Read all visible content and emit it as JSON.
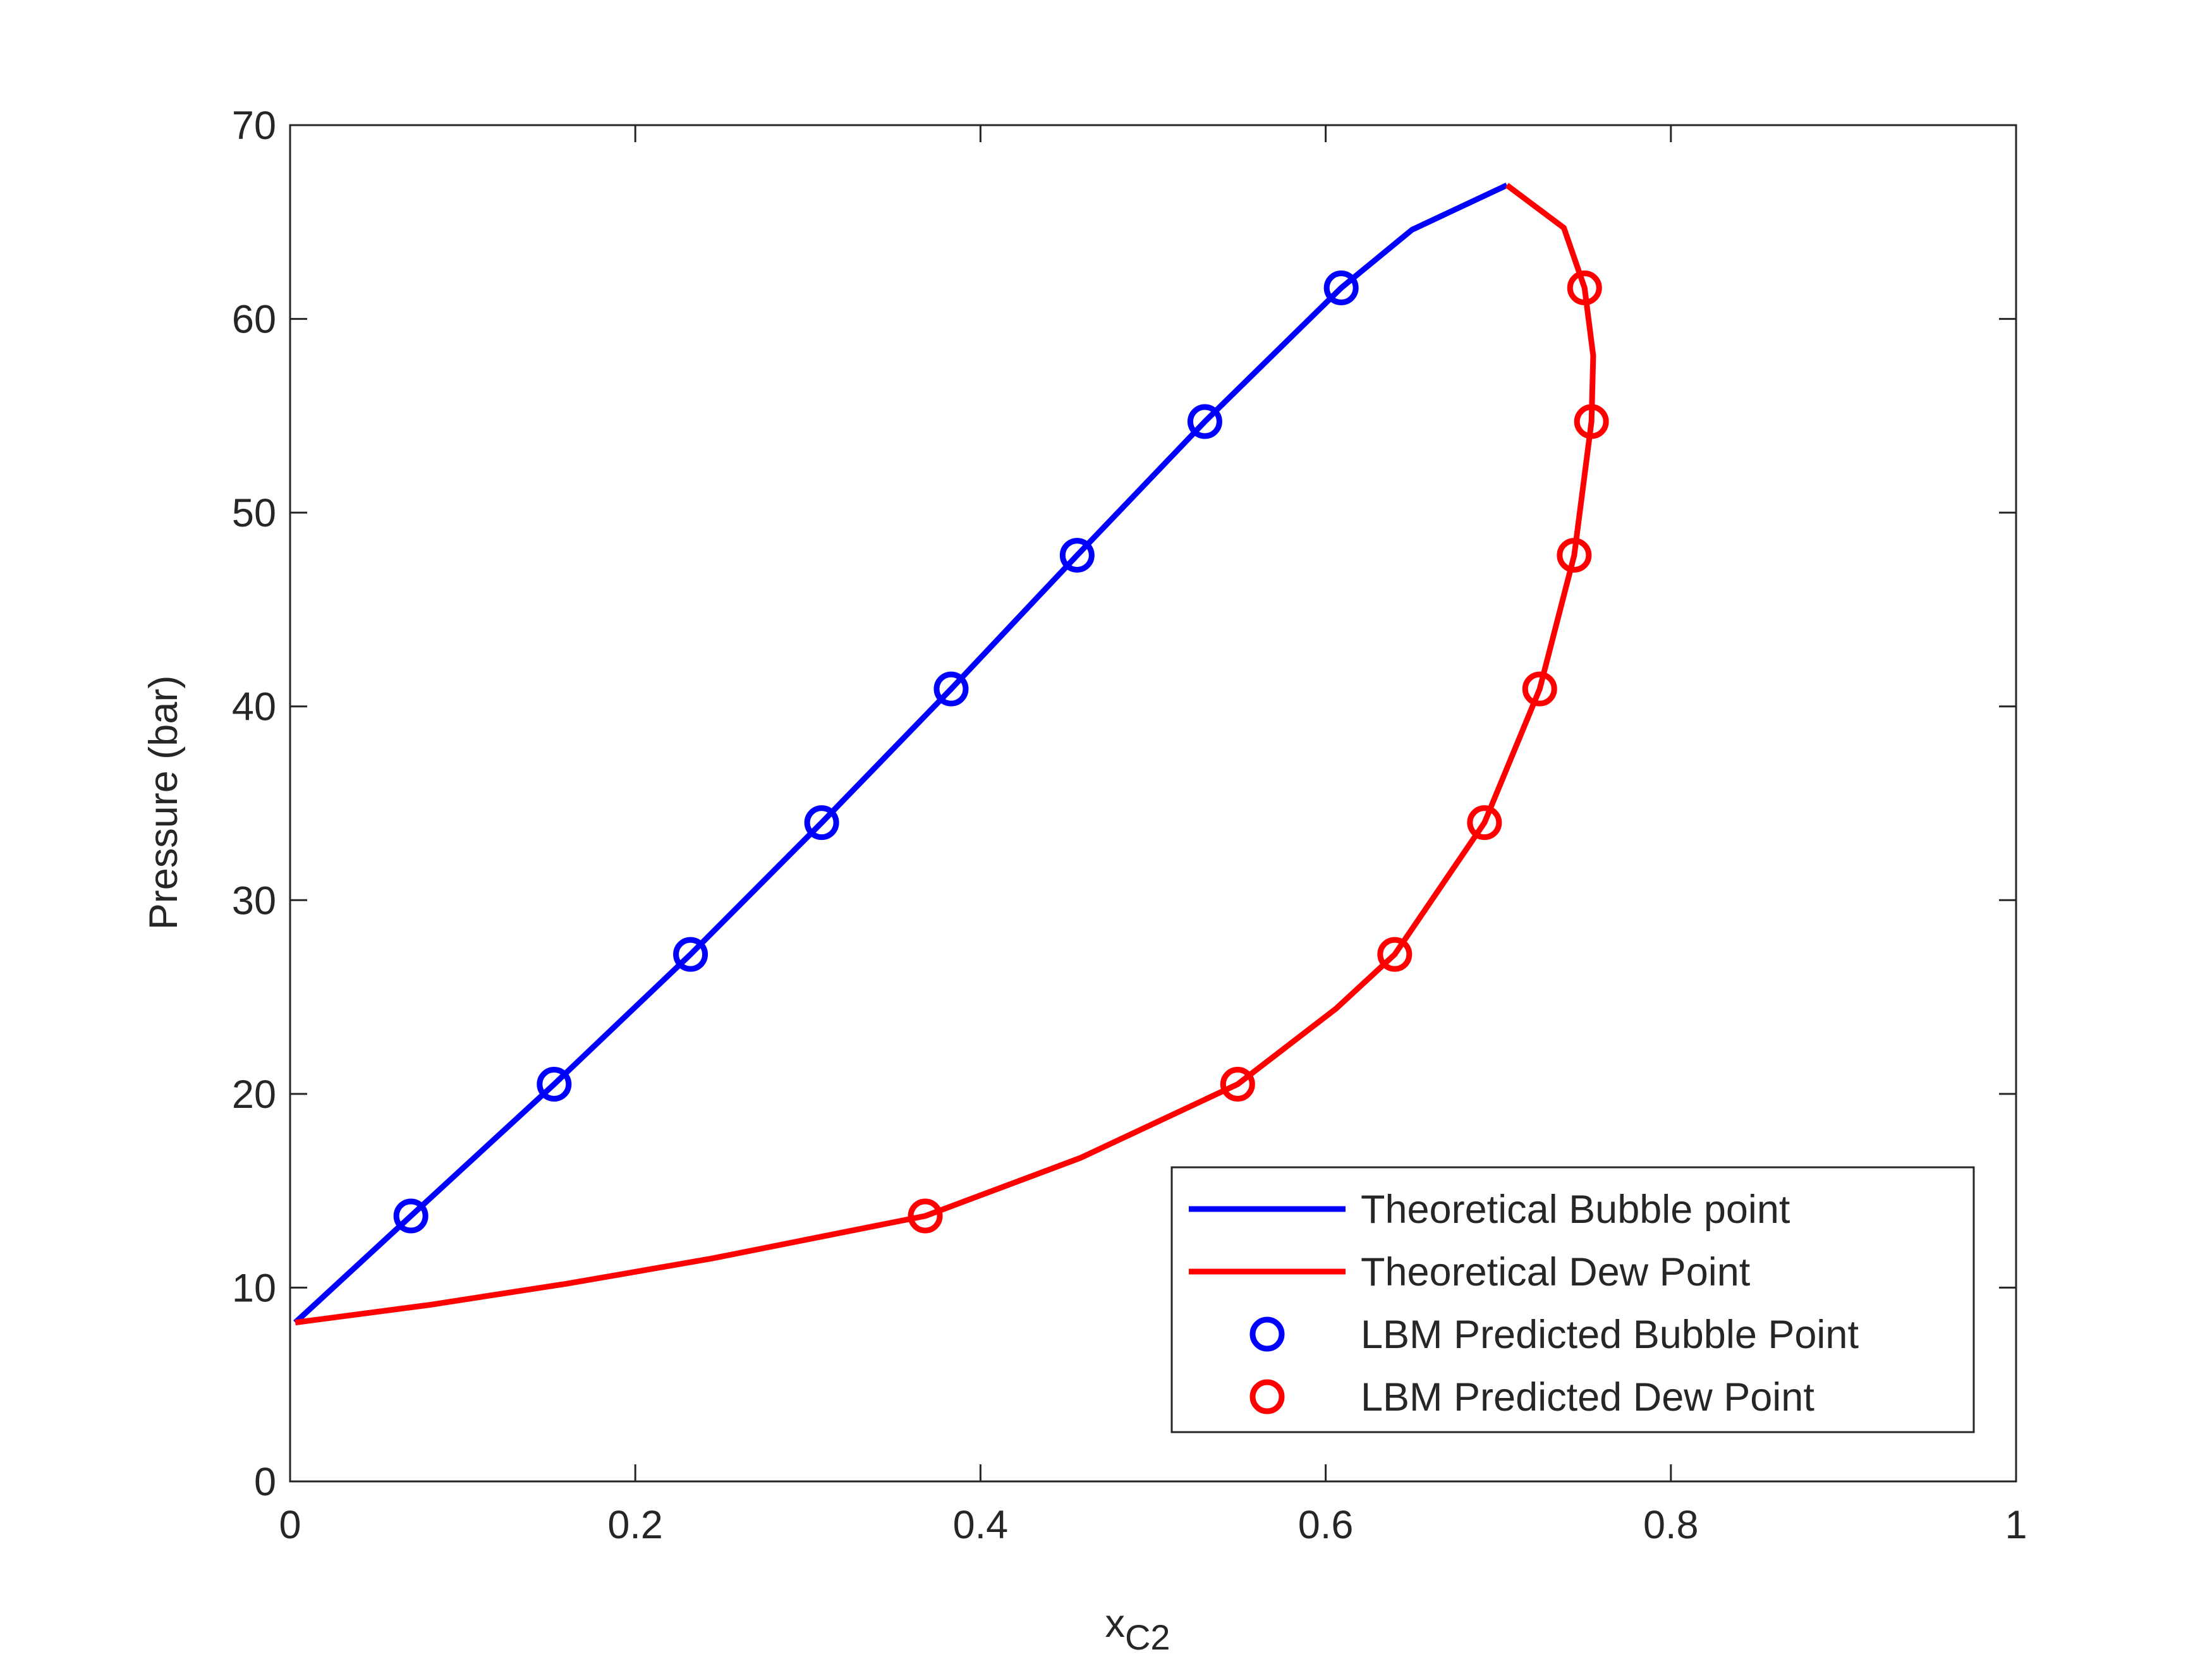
{
  "chart_data": {
    "type": "line",
    "xlabel": "x",
    "xlabel_subscript": "C2",
    "ylabel": "Pressure (bar)",
    "xlim": [
      0,
      1
    ],
    "xticks": [
      0,
      0.2,
      0.4,
      0.6,
      0.8,
      1
    ],
    "ylim": [
      0,
      70
    ],
    "yticks": [
      0,
      10,
      20,
      30,
      40,
      50,
      60,
      70
    ],
    "box": true,
    "legend": "lower right",
    "series": [
      {
        "name": "Theoretical Bubble point",
        "color": "#0000ff",
        "style": "line",
        "x": [
          0.003,
          0.07,
          0.153,
          0.232,
          0.308,
          0.383,
          0.456,
          0.53,
          0.609,
          0.65,
          0.705
        ],
        "values": [
          8.2,
          13.7,
          20.5,
          27.2,
          34.0,
          40.9,
          47.8,
          54.7,
          61.6,
          64.6,
          66.9
        ]
      },
      {
        "name": "Theoretical Dew Point",
        "color": "#ff0000",
        "style": "line",
        "x": [
          0.003,
          0.08,
          0.16,
          0.244,
          0.368,
          0.458,
          0.549,
          0.606,
          0.64,
          0.692,
          0.724,
          0.744,
          0.754,
          0.755,
          0.75,
          0.738,
          0.705
        ],
        "values": [
          8.2,
          9.1,
          10.2,
          11.5,
          13.7,
          16.7,
          20.5,
          24.4,
          27.2,
          34.0,
          40.9,
          47.8,
          54.7,
          58.1,
          61.6,
          64.7,
          66.9
        ]
      },
      {
        "name": "LBM Predicted Bubble Point",
        "color": "#0000ff",
        "style": "marker",
        "x": [
          0.07,
          0.153,
          0.232,
          0.308,
          0.383,
          0.456,
          0.53,
          0.609
        ],
        "values": [
          13.7,
          20.5,
          27.2,
          34.0,
          40.9,
          47.8,
          54.7,
          61.6
        ]
      },
      {
        "name": "LBM Predicted Dew Point",
        "color": "#ff0000",
        "style": "marker",
        "x": [
          0.368,
          0.549,
          0.64,
          0.692,
          0.724,
          0.744,
          0.754,
          0.75
        ],
        "values": [
          13.7,
          20.5,
          27.2,
          34.0,
          40.9,
          47.8,
          54.7,
          61.6
        ]
      }
    ]
  }
}
